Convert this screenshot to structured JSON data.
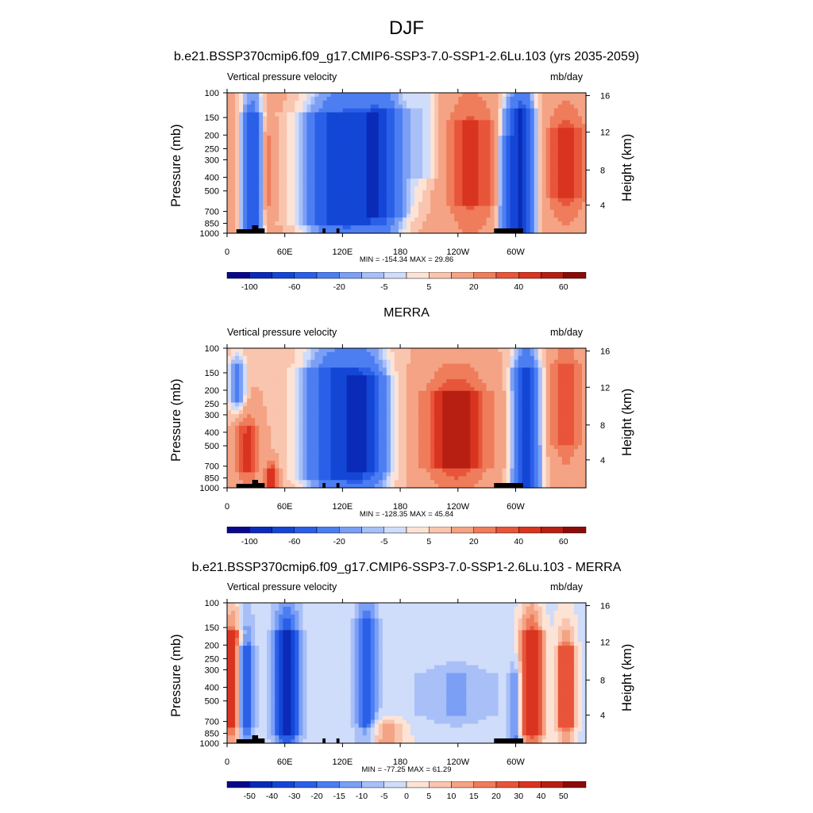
{
  "page": {
    "title": "DJF",
    "colors": {
      "negative": [
        "#08088a",
        "#0b2ab8",
        "#1446d6",
        "#2a5fe8",
        "#4c7ef2",
        "#7b9ff5",
        "#a8bff7",
        "#cfdcfa"
      ],
      "positive": [
        "#fde3d6",
        "#f9c5ae",
        "#f4a385",
        "#ef7c5a",
        "#e8553a",
        "#d93420",
        "#b71f12",
        "#8a0c08"
      ]
    }
  },
  "chart_data": [
    {
      "type": "heatmap",
      "title": "b.e21.BSSP370cmip6.f09_g17.CMIP6-SSP3-7.0-SSP1-2.6Lu.103 (yrs 2035-2059)",
      "variable": "Vertical pressure velocity",
      "units": "mb/day",
      "ylabel": "Pressure (mb)",
      "ylabel_right": "Height (km)",
      "x_ticks": [
        "0",
        "60E",
        "120E",
        "180",
        "120W",
        "60W"
      ],
      "y_ticks": [
        "100",
        "150",
        "200",
        "250",
        "300",
        "400",
        "500",
        "700",
        "850",
        "1000"
      ],
      "y_ticks_right": [
        "16",
        "12",
        "8",
        "4"
      ],
      "stats": "MIN = -154.34  MAX =  29.86",
      "colorbar_labels": [
        "-100",
        "-60",
        "-20",
        "-5",
        "5",
        "20",
        "40",
        "60"
      ]
    },
    {
      "type": "heatmap",
      "title": "MERRA",
      "variable": "Vertical pressure velocity",
      "units": "mb/day",
      "ylabel": "Pressure (mb)",
      "ylabel_right": "Height (km)",
      "x_ticks": [
        "0",
        "60E",
        "120E",
        "180",
        "120W",
        "60W"
      ],
      "y_ticks": [
        "100",
        "150",
        "200",
        "250",
        "300",
        "400",
        "500",
        "700",
        "850",
        "1000"
      ],
      "y_ticks_right": [
        "16",
        "12",
        "8",
        "4"
      ],
      "stats": "MIN = -128.35  MAX =  45.84",
      "colorbar_labels": [
        "-100",
        "-60",
        "-20",
        "-5",
        "5",
        "20",
        "40",
        "60"
      ]
    },
    {
      "type": "heatmap",
      "title": "b.e21.BSSP370cmip6.f09_g17.CMIP6-SSP3-7.0-SSP1-2.6Lu.103 - MERRA",
      "variable": "Vertical pressure velocity",
      "units": "mb/day",
      "ylabel": "Pressure (mb)",
      "ylabel_right": "Height (km)",
      "x_ticks": [
        "0",
        "60E",
        "120E",
        "180",
        "120W",
        "60W"
      ],
      "y_ticks": [
        "100",
        "150",
        "200",
        "250",
        "300",
        "400",
        "500",
        "700",
        "850",
        "1000"
      ],
      "y_ticks_right": [
        "16",
        "12",
        "8",
        "4"
      ],
      "stats": "MIN = -77.25  MAX =  61.29",
      "colorbar_labels": [
        "-50",
        "-40",
        "-30",
        "-20",
        "-15",
        "-10",
        "-5",
        "0",
        "5",
        "10",
        "15",
        "20",
        "30",
        "40",
        "50"
      ]
    }
  ]
}
